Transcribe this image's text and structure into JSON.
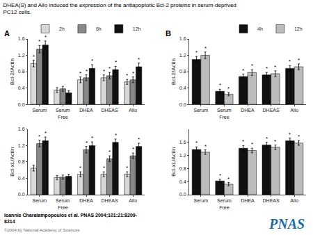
{
  "title": "DHEA(S) and Allo induced the expression of the antiapoptotic Bcl-2 proteins in serum-deprived\nPC12 cells.",
  "annotations": [
    {
      "text": "A"
    },
    {
      "text": "B"
    },
    {
      "text": "Ioannis Charalampopoulos et al. PNAS 2004;101:21:8209-\n8214"
    },
    {
      "text": "©2004 by National Academy of Sciences",
      "color": "#666666"
    },
    {
      "text": "PNAS",
      "color": "#1a6aab"
    }
  ],
  "chart_data": [
    {
      "type": "bar",
      "ylabel": "Bcl-2/Actin",
      "categories": [
        "Serum",
        "Serum\nFree",
        "DHEA",
        "DHEAS",
        "Allo"
      ],
      "series": [
        {
          "name": "2h",
          "color": "#d8d8d8",
          "values": [
            1.0,
            0.35,
            0.6,
            0.65,
            0.55
          ],
          "error": [
            0.08,
            0.06,
            0.07,
            0.07,
            0.06
          ],
          "significance": [
            "*",
            null,
            "*",
            "*",
            "*"
          ]
        },
        {
          "name": "6h",
          "color": "#888888",
          "values": [
            1.35,
            0.38,
            0.65,
            0.7,
            0.6
          ],
          "error": [
            0.09,
            0.06,
            0.07,
            0.08,
            0.07
          ],
          "significance": [
            "*",
            null,
            "*",
            "*",
            "*"
          ]
        },
        {
          "name": "12h",
          "color": "#111111",
          "values": [
            1.45,
            0.28,
            0.88,
            0.85,
            0.92
          ],
          "error": [
            0.1,
            0.05,
            0.09,
            0.08,
            0.09
          ],
          "significance": [
            "*",
            null,
            "*",
            "*",
            "*"
          ]
        }
      ],
      "ylim": [
        0,
        1.6
      ],
      "yticks": [
        {
          "value": 0,
          "label": "0.0"
        },
        0.4,
        0.8,
        1.2,
        1.6
      ],
      "grid": false,
      "legend": "upper right"
    },
    {
      "type": "bar",
      "ylabel": "Bcl-xL/Actin",
      "categories": [
        "Serum",
        "Serum\nFree",
        "DHEA",
        "DHEAS",
        "Allo"
      ],
      "series": [
        {
          "name": "2h",
          "color": "#d8d8d8",
          "values": [
            0.65,
            0.42,
            0.5,
            0.5,
            0.5
          ],
          "error": [
            0.07,
            0.05,
            0.06,
            0.06,
            0.06
          ],
          "significance": [
            null,
            null,
            "*",
            "*",
            "*"
          ]
        },
        {
          "name": "6h",
          "color": "#888888",
          "values": [
            1.25,
            0.43,
            1.1,
            0.88,
            0.95
          ],
          "error": [
            0.08,
            0.05,
            0.08,
            0.07,
            0.07
          ],
          "significance": [
            "*",
            null,
            "*",
            "*",
            "*"
          ]
        },
        {
          "name": "12h",
          "color": "#111111",
          "values": [
            1.32,
            0.45,
            1.2,
            1.28,
            1.18
          ],
          "error": [
            0.09,
            0.05,
            0.09,
            0.08,
            0.08
          ],
          "significance": [
            "*",
            null,
            "*",
            "*",
            "*"
          ]
        }
      ],
      "ylim": [
        0,
        1.6
      ],
      "yticks": [
        {
          "value": 0,
          "label": "0.0"
        },
        0.4,
        0.8,
        1.2,
        1.6
      ],
      "grid": false,
      "legend": false
    },
    {
      "type": "bar",
      "ylabel": "Bcl-2/Actin",
      "categories": [
        "Serum",
        "Serum\nFree",
        "DHEA",
        "DHEAS",
        "Allo"
      ],
      "series": [
        {
          "name": "4h",
          "color": "#111111",
          "values": [
            1.1,
            0.32,
            0.68,
            0.72,
            0.88
          ],
          "error": [
            0.07,
            0.05,
            0.06,
            0.06,
            0.07
          ],
          "significance": [
            "*",
            "*",
            "*",
            "*",
            "*"
          ]
        },
        {
          "name": "12h",
          "color": "#bbbbbb",
          "values": [
            1.2,
            0.25,
            0.78,
            0.75,
            0.92
          ],
          "error": [
            0.08,
            0.04,
            0.07,
            0.07,
            0.07
          ],
          "significance": [
            "*",
            "*",
            "*",
            "*",
            "*"
          ]
        }
      ],
      "ylim": [
        0,
        1.6
      ],
      "yticks": [
        {
          "value": 0,
          "label": "0.0"
        },
        0.4,
        0.8,
        1.2,
        1.6
      ],
      "grid": false,
      "legend": "upper right"
    },
    {
      "type": "bar",
      "ylabel": "Bcl-xL/Actin",
      "categories": [
        "Serum",
        "Serum\nFree",
        "DHEA",
        "DHEAS",
        "Allo"
      ],
      "series": [
        {
          "name": "4h",
          "color": "#111111",
          "values": [
            1.38,
            0.42,
            1.42,
            1.52,
            1.65
          ],
          "error": [
            0.08,
            0.05,
            0.08,
            0.08,
            0.08
          ],
          "significance": [
            "*",
            "*",
            "*",
            "*",
            "*"
          ]
        },
        {
          "name": "12h",
          "color": "#bbbbbb",
          "values": [
            1.3,
            0.32,
            1.35,
            1.45,
            1.58
          ],
          "error": [
            0.07,
            0.05,
            0.07,
            0.07,
            0.07
          ],
          "significance": [
            "*",
            "*",
            "*",
            "*",
            "*"
          ]
        }
      ],
      "ylim": [
        0,
        2.0
      ],
      "yticks": [
        {
          "value": 0,
          "label": "0.0"
        },
        0.4,
        0.8,
        1.2,
        1.6
      ],
      "grid": false,
      "legend": false
    }
  ]
}
